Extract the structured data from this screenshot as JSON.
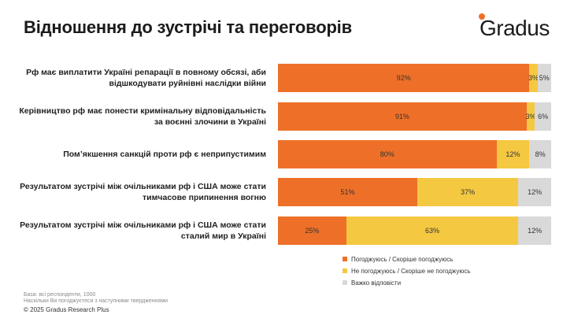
{
  "title": "Відношення до зустрічі та переговорів",
  "logo": {
    "text": "Gradus",
    "accent": "#ee7028"
  },
  "chart_data": {
    "type": "bar",
    "orientation": "horizontal-stacked-100",
    "categories": [
      "Рф має виплатити Україні репарації в повному обсязі, аби відшкодувати руйнівні наслідки війни",
      "Керівництво рф має понести кримінальну відповідальність за воєнні злочини в Україні",
      "Пом’якшення санкцій проти рф є неприпустимим",
      "Результатом зустрічі між очільниками рф і США може стати тимчасове припинення вогню",
      "Результатом зустрічі між очільниками рф і США може стати сталий мир в Україні"
    ],
    "series": [
      {
        "name": "Погоджуюсь / Скоріше погоджуюсь",
        "color": "#ee7028",
        "values": [
          92,
          91,
          80,
          51,
          25
        ]
      },
      {
        "name": "Не погоджуюсь / Скоріше не погоджуюсь",
        "color": "#f5c842",
        "values": [
          3,
          3,
          12,
          37,
          63
        ]
      },
      {
        "name": "Важко відповісти",
        "color": "#d9d9d9",
        "values": [
          5,
          6,
          8,
          12,
          12
        ]
      }
    ],
    "legend_position": "bottom-right",
    "value_suffix": "%"
  },
  "footnotes": {
    "base": "База: всі респонденти, 1000",
    "question": "Наскільки Ви погоджуєтеся з наступними твердженнями"
  },
  "copyright": "© 2025 Gradus Research Plus"
}
